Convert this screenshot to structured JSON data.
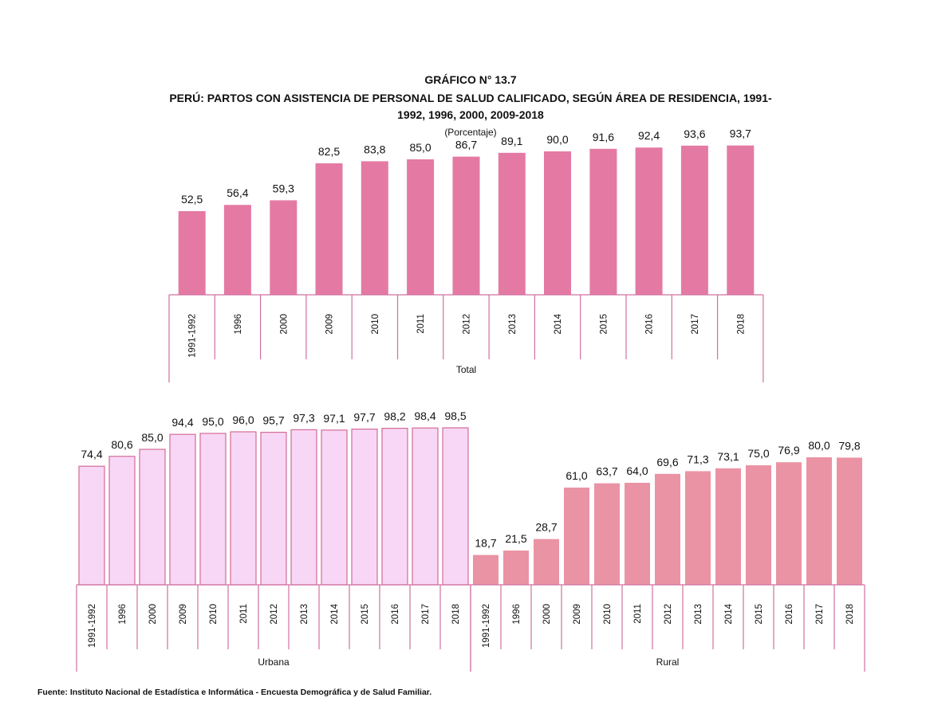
{
  "title_lines": [
    "GRÁFICO N° 13.7",
    "PERÚ: PARTOS CON ASISTENCIA DE PERSONAL DE SALUD CALIFICADO, SEGÚN ÁREA DE RESIDENCIA, 1991-",
    "1992, 1996, 2000, 2009-2018"
  ],
  "subtitle": "(Porcentaje)",
  "source": "Fuente: Instituto Nacional de Estadística e Informática - Encuesta Demográfica y de Salud Familiar.",
  "colors": {
    "total": "#e47aa4",
    "urbana": "#f7d7f5",
    "urbana_edge": "#d46b96",
    "rural": "#ea93a4",
    "axis": "#d070a0"
  },
  "chart_data": [
    {
      "type": "bar",
      "group_label": "Total",
      "categories": [
        "1991-1992",
        "1996",
        "2000",
        "2009",
        "2010",
        "2011",
        "2012",
        "2013",
        "2014",
        "2015",
        "2016",
        "2017",
        "2018"
      ],
      "values": [
        52.5,
        56.4,
        59.3,
        82.5,
        83.8,
        85.0,
        86.7,
        89.1,
        90.0,
        91.6,
        92.4,
        93.6,
        93.7
      ],
      "value_labels": [
        "52,5",
        "56,4",
        "59,3",
        "82,5",
        "83,8",
        "85,0",
        "86,7",
        "89,1",
        "90,0",
        "91,6",
        "92,4",
        "93,6",
        "93,7"
      ],
      "ylim": [
        0,
        100
      ]
    },
    {
      "type": "bar",
      "group_label": "Urbana",
      "categories": [
        "1991-1992",
        "1996",
        "2000",
        "2009",
        "2010",
        "2011",
        "2012",
        "2013",
        "2014",
        "2015",
        "2016",
        "2017",
        "2018"
      ],
      "values": [
        74.4,
        80.6,
        85.0,
        94.4,
        95.0,
        96.0,
        95.7,
        97.3,
        97.1,
        97.7,
        98.2,
        98.4,
        98.5
      ],
      "value_labels": [
        "74,4",
        "80,6",
        "85,0",
        "94,4",
        "95,0",
        "96,0",
        "95,7",
        "97,3",
        "97,1",
        "97,7",
        "98,2",
        "98,4",
        "98,5"
      ],
      "ylim": [
        0,
        100
      ]
    },
    {
      "type": "bar",
      "group_label": "Rural",
      "categories": [
        "1991-1992",
        "1996",
        "2000",
        "2009",
        "2010",
        "2011",
        "2012",
        "2013",
        "2014",
        "2015",
        "2016",
        "2017",
        "2018"
      ],
      "values": [
        18.7,
        21.5,
        28.7,
        61.0,
        63.7,
        64.0,
        69.6,
        71.3,
        73.1,
        75.0,
        76.9,
        80.0,
        79.8
      ],
      "value_labels": [
        "18,7",
        "21,5",
        "28,7",
        "61,0",
        "63,7",
        "64,0",
        "69,6",
        "71,3",
        "73,1",
        "75,0",
        "76,9",
        "80,0",
        "79,8"
      ],
      "ylim": [
        0,
        100
      ]
    }
  ]
}
